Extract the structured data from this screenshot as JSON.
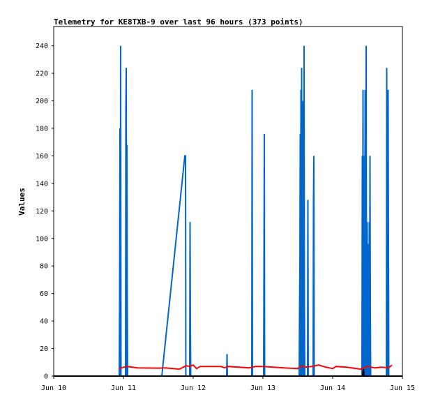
{
  "chart_data": {
    "type": "line",
    "title": "Telemetry for KE8TXB-9 over last 96 hours (373 points)",
    "xlabel": "",
    "ylabel": "Values",
    "xlim": [
      10.0,
      15.0
    ],
    "ylim": [
      0,
      254
    ],
    "y_ticks": [
      0,
      20,
      40,
      60,
      80,
      100,
      120,
      140,
      160,
      180,
      200,
      220,
      240
    ],
    "x_ticks": [
      {
        "value": 10,
        "label": "Jun 10"
      },
      {
        "value": 11,
        "label": "Jun 11"
      },
      {
        "value": 12,
        "label": "Jun 12"
      },
      {
        "value": 13,
        "label": "Jun 13"
      },
      {
        "value": 14,
        "label": "Jun 14"
      },
      {
        "value": 15,
        "label": "Jun 15"
      }
    ],
    "grid": false,
    "legend": "none",
    "series": [
      {
        "color": "#0066cc",
        "points": [
          [
            10.94,
            0
          ],
          [
            10.945,
            60
          ],
          [
            10.95,
            180
          ],
          [
            10.955,
            0
          ],
          [
            10.96,
            240
          ],
          [
            10.965,
            0
          ],
          [
            11.03,
            0
          ],
          [
            11.035,
            192
          ],
          [
            11.04,
            224
          ],
          [
            11.045,
            0
          ],
          [
            11.05,
            168
          ],
          [
            11.055,
            56
          ],
          [
            11.06,
            0
          ],
          [
            11.55,
            0
          ],
          [
            11.88,
            160
          ],
          [
            11.89,
            160
          ],
          [
            11.895,
            0
          ],
          [
            11.95,
            0
          ],
          [
            11.955,
            112
          ],
          [
            11.96,
            40
          ],
          [
            11.965,
            0
          ],
          [
            12.48,
            0
          ],
          [
            12.485,
            16
          ],
          [
            12.49,
            0
          ],
          [
            12.84,
            0
          ],
          [
            12.845,
            208
          ],
          [
            12.85,
            0
          ],
          [
            13.01,
            0
          ],
          [
            13.015,
            80
          ],
          [
            13.02,
            176
          ],
          [
            13.025,
            0
          ],
          [
            13.52,
            0
          ],
          [
            13.525,
            48
          ],
          [
            13.53,
            80
          ],
          [
            13.535,
            176
          ],
          [
            13.54,
            0
          ],
          [
            13.545,
            208
          ],
          [
            13.55,
            0
          ],
          [
            13.555,
            224
          ],
          [
            13.56,
            56
          ],
          [
            13.565,
            0
          ],
          [
            13.57,
            200
          ],
          [
            13.575,
            0
          ],
          [
            13.58,
            176
          ],
          [
            13.585,
            0
          ],
          [
            13.59,
            240
          ],
          [
            13.595,
            56
          ],
          [
            13.6,
            0
          ],
          [
            13.64,
            0
          ],
          [
            13.645,
            128
          ],
          [
            13.65,
            0
          ],
          [
            13.72,
            0
          ],
          [
            13.725,
            128
          ],
          [
            13.73,
            160
          ],
          [
            13.735,
            0
          ],
          [
            14.42,
            0
          ],
          [
            14.425,
            160
          ],
          [
            14.43,
            0
          ],
          [
            14.435,
            208
          ],
          [
            14.44,
            0
          ],
          [
            14.445,
            128
          ],
          [
            14.45,
            0
          ],
          [
            14.455,
            160
          ],
          [
            14.46,
            0
          ],
          [
            14.465,
            208
          ],
          [
            14.47,
            104
          ],
          [
            14.475,
            0
          ],
          [
            14.48,
            240
          ],
          [
            14.485,
            56
          ],
          [
            14.49,
            0
          ],
          [
            14.495,
            112
          ],
          [
            14.5,
            0
          ],
          [
            14.505,
            96
          ],
          [
            14.51,
            0
          ],
          [
            14.515,
            24
          ],
          [
            14.52,
            0
          ],
          [
            14.525,
            112
          ],
          [
            14.53,
            0
          ],
          [
            14.535,
            160
          ],
          [
            14.54,
            56
          ],
          [
            14.545,
            0
          ],
          [
            14.77,
            0
          ],
          [
            14.775,
            224
          ],
          [
            14.78,
            52
          ],
          [
            14.785,
            0
          ],
          [
            14.79,
            156
          ],
          [
            14.795,
            208
          ],
          [
            14.8,
            104
          ],
          [
            14.805,
            0
          ]
        ]
      },
      {
        "color": "#ff0000",
        "points": [
          [
            10.94,
            5
          ],
          [
            10.97,
            6
          ],
          [
            11.05,
            7
          ],
          [
            11.2,
            6
          ],
          [
            11.5,
            5.8
          ],
          [
            11.6,
            6
          ],
          [
            11.8,
            5
          ],
          [
            11.9,
            7.5
          ],
          [
            11.95,
            7
          ],
          [
            12.0,
            8
          ],
          [
            12.05,
            5.5
          ],
          [
            12.1,
            7
          ],
          [
            12.4,
            7
          ],
          [
            12.45,
            6
          ],
          [
            12.5,
            7
          ],
          [
            12.8,
            6
          ],
          [
            12.9,
            7
          ],
          [
            13.0,
            7
          ],
          [
            13.3,
            6
          ],
          [
            13.5,
            5.5
          ],
          [
            13.55,
            7.5
          ],
          [
            13.6,
            6.5
          ],
          [
            13.7,
            7
          ],
          [
            13.8,
            8
          ],
          [
            13.9,
            6.5
          ],
          [
            14.0,
            5.5
          ],
          [
            14.05,
            7
          ],
          [
            14.2,
            6.5
          ],
          [
            14.4,
            5
          ],
          [
            14.45,
            6
          ],
          [
            14.5,
            7
          ],
          [
            14.6,
            6
          ],
          [
            14.7,
            6.5
          ],
          [
            14.8,
            6
          ],
          [
            14.85,
            8
          ]
        ]
      },
      {
        "color": "#000000",
        "points": [
          [
            10.0,
            0
          ],
          [
            15.0,
            0
          ]
        ]
      },
      {
        "color": "#000000",
        "points": [
          [
            14.43,
            0
          ],
          [
            14.44,
            5
          ],
          [
            14.45,
            0
          ]
        ]
      }
    ]
  }
}
